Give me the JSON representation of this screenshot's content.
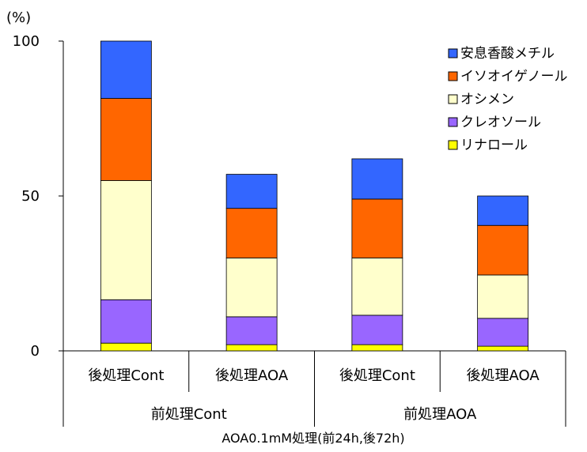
{
  "chart_data": {
    "type": "bar",
    "stacked": true,
    "unit_label": "(%)",
    "ylim": [
      0,
      100
    ],
    "yticks": [
      0,
      50,
      100
    ],
    "grid": false,
    "legend_position": "top-right",
    "categories": [
      "後処理Cont",
      "後処理AOA",
      "後処理Cont",
      "後処理AOA"
    ],
    "groups": [
      {
        "label": "前処理Cont",
        "span": [
          0,
          1
        ]
      },
      {
        "label": "前処理AOA",
        "span": [
          2,
          3
        ]
      }
    ],
    "xlabel": "AOA0.1mM処理(前24h,後72h)",
    "series": [
      {
        "name": "リナロール",
        "color": "#ffff00",
        "values": [
          2.5,
          2,
          2,
          1.5
        ]
      },
      {
        "name": "クレオソール",
        "color": "#9966ff",
        "values": [
          14,
          9,
          9.5,
          9
        ]
      },
      {
        "name": "オシメン",
        "color": "#ffffcc",
        "values": [
          38.5,
          19,
          18.5,
          14
        ]
      },
      {
        "name": "イソオイゲノール",
        "color": "#ff6600",
        "values": [
          26.5,
          16,
          19,
          16
        ]
      },
      {
        "name": "安息香酸メチル",
        "color": "#3366ff",
        "values": [
          18.5,
          11,
          13,
          9.5
        ]
      }
    ]
  }
}
